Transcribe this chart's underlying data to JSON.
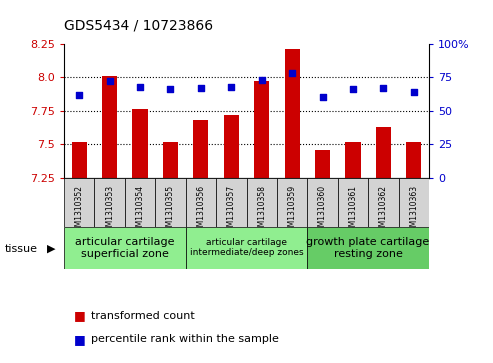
{
  "title": "GDS5434 / 10723866",
  "samples": [
    "GSM1310352",
    "GSM1310353",
    "GSM1310354",
    "GSM1310355",
    "GSM1310356",
    "GSM1310357",
    "GSM1310358",
    "GSM1310359",
    "GSM1310360",
    "GSM1310361",
    "GSM1310362",
    "GSM1310363"
  ],
  "bar_values": [
    7.52,
    8.01,
    7.76,
    7.52,
    7.68,
    7.72,
    7.97,
    8.21,
    7.46,
    7.52,
    7.63,
    7.52
  ],
  "dot_values": [
    62,
    72,
    68,
    66,
    67,
    68,
    73,
    78,
    60,
    66,
    67,
    64
  ],
  "ylim_left": [
    7.25,
    8.25
  ],
  "ylim_right": [
    0,
    100
  ],
  "bar_color": "#cc0000",
  "dot_color": "#0000cc",
  "grid_color": "#000000",
  "bg_color": "#ffffff",
  "tick_label_color_left": "#cc0000",
  "tick_label_color_right": "#0000cc",
  "tissue_groups": [
    {
      "label": "articular cartilage\nsuperficial zone",
      "start": 0,
      "end": 3,
      "color": "#90ee90",
      "fontsize": 8
    },
    {
      "label": "articular cartilage\nintermediate/deep zones",
      "start": 4,
      "end": 7,
      "color": "#90ee90",
      "fontsize": 6.5
    },
    {
      "label": "growth plate cartilage\nresting zone",
      "start": 8,
      "end": 11,
      "color": "#66cc66",
      "fontsize": 8
    }
  ],
  "legend_items": [
    {
      "label": "transformed count",
      "color": "#cc0000",
      "marker": "s"
    },
    {
      "label": "percentile rank within the sample",
      "color": "#0000cc",
      "marker": "s"
    }
  ],
  "tissue_label": "tissue",
  "bar_width": 0.5,
  "yticks_left": [
    7.25,
    7.5,
    7.75,
    8.0,
    8.25
  ],
  "yticks_right": [
    0,
    25,
    50,
    75,
    100
  ],
  "grid_ticks": [
    7.5,
    7.75,
    8.0
  ]
}
